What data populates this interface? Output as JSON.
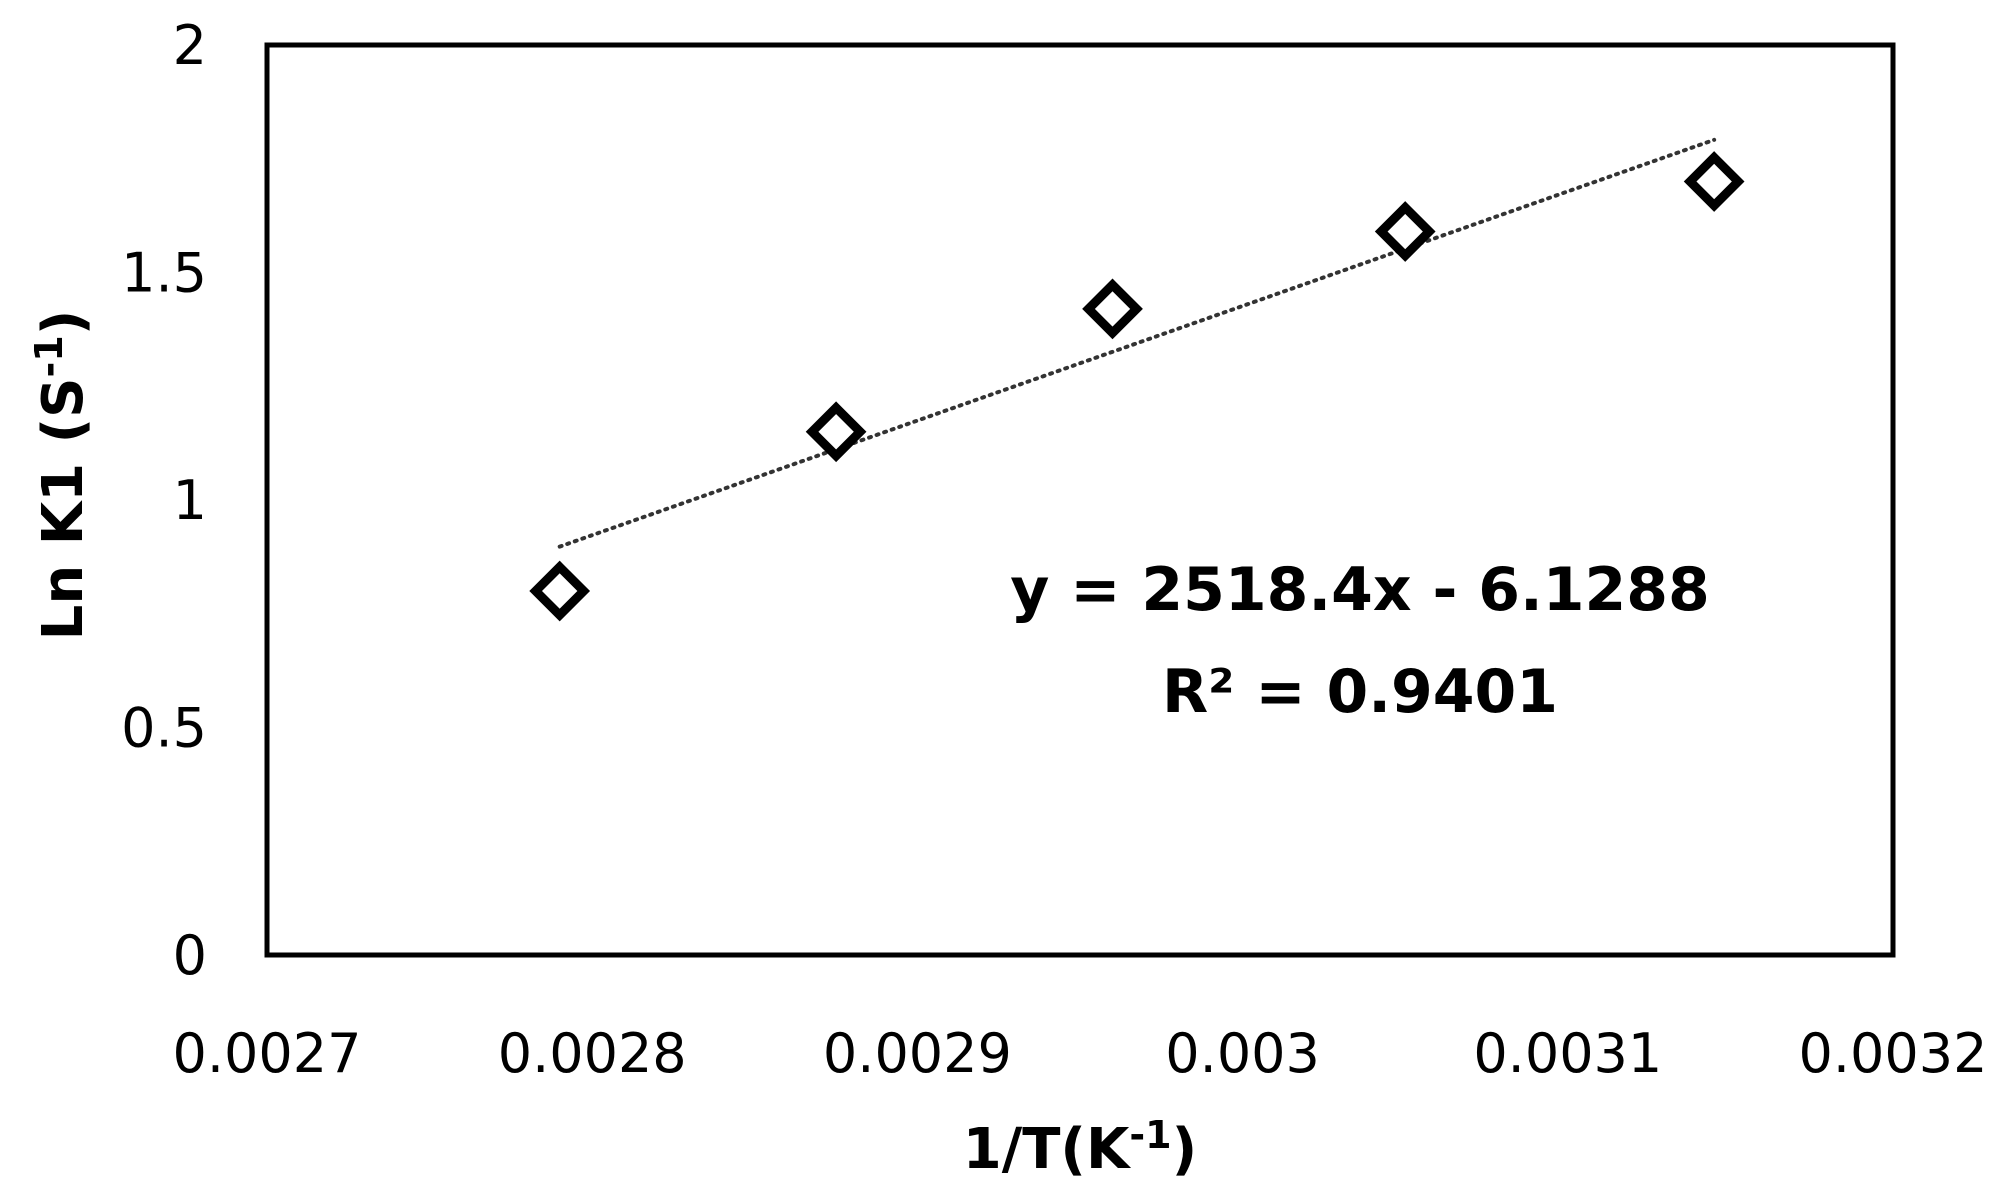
{
  "chart_data": {
    "type": "scatter",
    "xlabel": {
      "main": "1/T(K",
      "sup": "-1",
      "end": ")"
    },
    "ylabel": {
      "main": "Ln K1 (S",
      "sup": "-1",
      "end": ")"
    },
    "xlim": [
      0.0027,
      0.0032
    ],
    "ylim": [
      0,
      2
    ],
    "xticks": [
      "0.0027",
      "0.0028",
      "0.0029",
      "0.003",
      "0.0031",
      "0.0032"
    ],
    "yticks": [
      "0",
      "0.5",
      "1",
      "1.5",
      "2"
    ],
    "grid": false,
    "legend": "none",
    "marker": "diamond-open",
    "points": [
      {
        "x": 0.00279,
        "y": 0.8
      },
      {
        "x": 0.002875,
        "y": 1.15
      },
      {
        "x": 0.00296,
        "y": 1.42
      },
      {
        "x": 0.00305,
        "y": 1.59
      },
      {
        "x": 0.003145,
        "y": 1.7
      }
    ],
    "trendline": {
      "style": "dotted",
      "slope": 2518.4,
      "intercept": -6.1288,
      "x_range": [
        0.00279,
        0.003145
      ],
      "equation": "y = 2518.4x - 6.1288",
      "r2_label": "R² = 0.9401"
    }
  }
}
